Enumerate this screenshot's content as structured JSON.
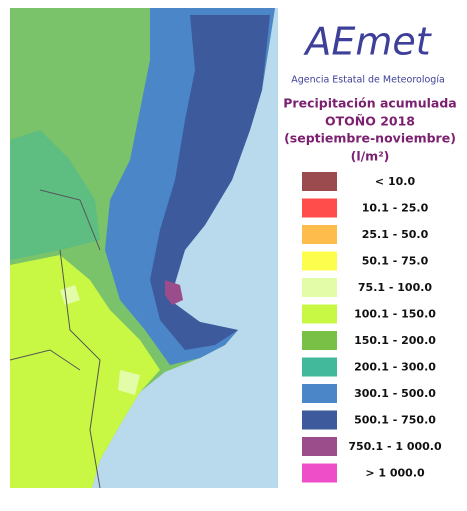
{
  "logo": {
    "name": "AEmet",
    "agency": "Agencia Estatal de Meteorología"
  },
  "title": {
    "line1": "Precipitación acumulada",
    "line2": "OTOÑO 2018",
    "line3": "(septiembre-noviembre)",
    "unit": "(l/m²)"
  },
  "legend": [
    {
      "label": "< 10.0",
      "color": "#9b4a4e"
    },
    {
      "label": "10.1 - 25.0",
      "color": "#fe4d4a"
    },
    {
      "label": "25.1 - 50.0",
      "color": "#fdbc4c"
    },
    {
      "label": "50.1 - 75.0",
      "color": "#fdfd4e"
    },
    {
      "label": "75.1 - 100.0",
      "color": "#e3fca8"
    },
    {
      "label": "100.1 - 150.0",
      "color": "#c8f844"
    },
    {
      "label": "150.1 - 200.0",
      "color": "#79c046"
    },
    {
      "label": "200.1 - 300.0",
      "color": "#41b99a"
    },
    {
      "label": "300.1 - 500.0",
      "color": "#4a86c8"
    },
    {
      "label": "500.1 - 750.0",
      "color": "#3d5a9c"
    },
    {
      "label": "750.1 - 1 000.0",
      "color": "#9b4c8a"
    },
    {
      "label": "> 1 000.0",
      "color": "#ee4fc8"
    }
  ]
}
